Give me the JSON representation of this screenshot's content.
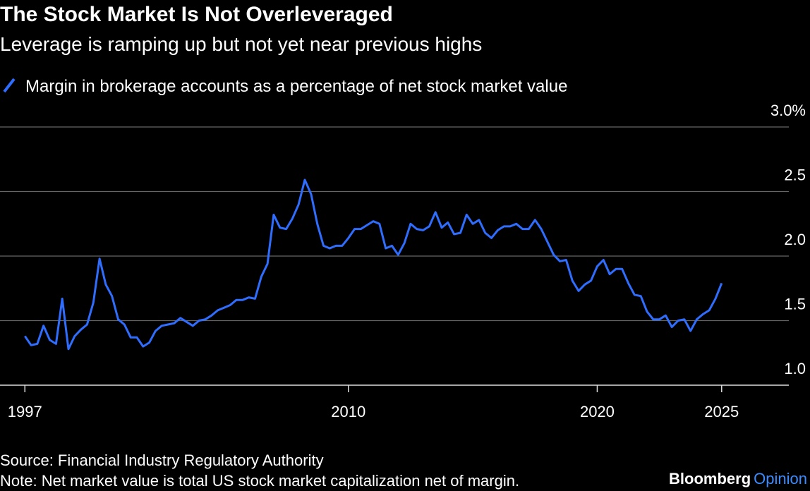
{
  "chart_data": {
    "type": "line",
    "title": "The Stock Market Is Not Overleveraged",
    "subtitle": "Leverage is ramping up but not yet near previous highs",
    "source": "Source: Financial Industry Regulatory Authority",
    "note": "Note: Net market value is total US stock market capitalization net of margin.",
    "brand": {
      "name": "Bloomberg",
      "section": "Opinion"
    },
    "x": [
      1997,
      1997.25,
      1997.5,
      1997.75,
      1998,
      1998.25,
      1998.5,
      1998.75,
      1999,
      1999.25,
      1999.5,
      1999.75,
      2000,
      2000.25,
      2000.5,
      2000.75,
      2001,
      2001.25,
      2001.5,
      2001.75,
      2002,
      2002.25,
      2002.5,
      2002.75,
      2003,
      2003.25,
      2003.5,
      2003.75,
      2004,
      2004.25,
      2004.5,
      2004.75,
      2005,
      2005.25,
      2005.5,
      2005.75,
      2006,
      2006.25,
      2006.5,
      2006.75,
      2007,
      2007.25,
      2007.5,
      2007.75,
      2008,
      2008.25,
      2008.5,
      2008.75,
      2009,
      2009.25,
      2009.5,
      2009.75,
      2010,
      2010.25,
      2010.5,
      2010.75,
      2011,
      2011.25,
      2011.5,
      2011.75,
      2012,
      2012.25,
      2012.5,
      2012.75,
      2013,
      2013.25,
      2013.5,
      2013.75,
      2014,
      2014.25,
      2014.5,
      2014.75,
      2015,
      2015.25,
      2015.5,
      2015.75,
      2016,
      2016.25,
      2016.5,
      2016.75,
      2017,
      2017.25,
      2017.5,
      2017.75,
      2018,
      2018.25,
      2018.5,
      2018.75,
      2019,
      2019.25,
      2019.5,
      2019.75,
      2020,
      2020.25,
      2020.5,
      2020.75,
      2021,
      2021.25,
      2021.5,
      2021.75,
      2022,
      2022.25,
      2022.5,
      2022.75,
      2023,
      2023.25,
      2023.5,
      2023.75,
      2024,
      2024.25,
      2024.5,
      2024.75,
      2025
    ],
    "series": [
      {
        "name": "Margin in brokerage accounts as a percentage of net stock market value",
        "color": "#2f6dff",
        "values": [
          1.38,
          1.31,
          1.32,
          1.46,
          1.35,
          1.32,
          1.67,
          1.28,
          1.38,
          1.43,
          1.47,
          1.64,
          1.98,
          1.78,
          1.69,
          1.51,
          1.47,
          1.37,
          1.37,
          1.3,
          1.33,
          1.42,
          1.46,
          1.47,
          1.48,
          1.52,
          1.49,
          1.46,
          1.5,
          1.51,
          1.54,
          1.58,
          1.6,
          1.62,
          1.66,
          1.66,
          1.68,
          1.67,
          1.84,
          1.94,
          2.32,
          2.22,
          2.21,
          2.29,
          2.4,
          2.59,
          2.48,
          2.25,
          2.08,
          2.06,
          2.08,
          2.08,
          2.14,
          2.21,
          2.21,
          2.24,
          2.27,
          2.25,
          2.06,
          2.08,
          2.01,
          2.1,
          2.25,
          2.21,
          2.2,
          2.23,
          2.34,
          2.22,
          2.26,
          2.17,
          2.18,
          2.32,
          2.25,
          2.28,
          2.18,
          2.14,
          2.2,
          2.23,
          2.23,
          2.25,
          2.21,
          2.21,
          2.28,
          2.21,
          2.11,
          2.01,
          1.96,
          1.97,
          1.81,
          1.73,
          1.78,
          1.81,
          1.92,
          1.97,
          1.86,
          1.9,
          1.9,
          1.79,
          1.7,
          1.69,
          1.57,
          1.51,
          1.51,
          1.54,
          1.45,
          1.5,
          1.51,
          1.42,
          1.51,
          1.55,
          1.58,
          1.67,
          1.79
        ]
      }
    ],
    "xlim": [
      1996,
      2027.7
    ],
    "xticks": [
      1997,
      2010,
      2020,
      2025
    ],
    "ylim": [
      1,
      3
    ],
    "yticks": [
      {
        "value": 1,
        "label": "1.0"
      },
      1.5,
      {
        "value": 2,
        "label": "2.0"
      },
      2.5,
      {
        "value": 3,
        "label": "3.0%"
      }
    ],
    "grid": true
  }
}
